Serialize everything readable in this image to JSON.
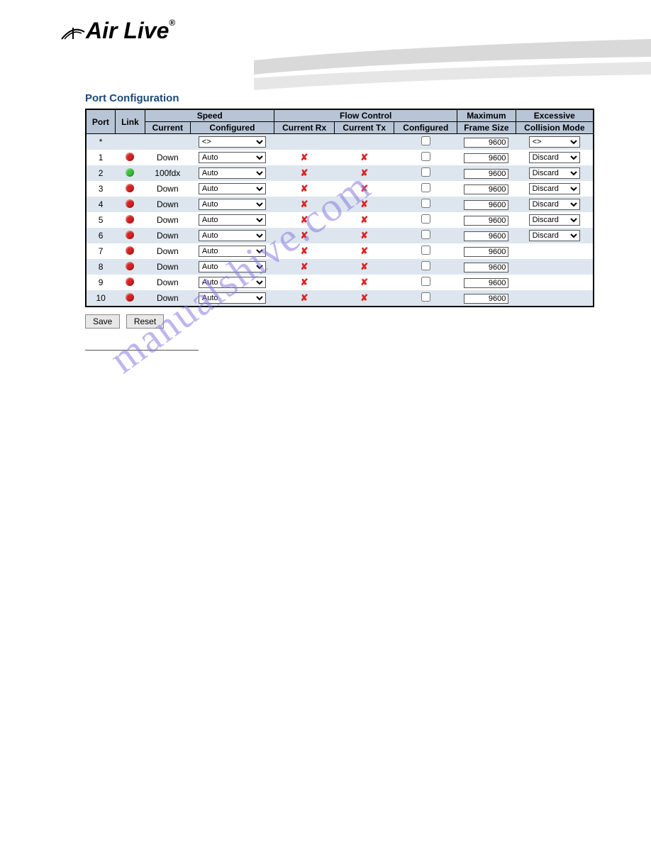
{
  "logo": {
    "text": "Air Live",
    "registered": "®"
  },
  "title": "Port Configuration",
  "headers": {
    "port": "Port",
    "link": "Link",
    "speed": "Speed",
    "speed_current": "Current",
    "speed_configured": "Configured",
    "flow": "Flow Control",
    "flow_rx": "Current Rx",
    "flow_tx": "Current Tx",
    "flow_conf": "Configured",
    "max": "Maximum",
    "max_sub": "Frame Size",
    "exc": "Excessive",
    "exc_sub": "Collision Mode"
  },
  "speed_options": [
    "<>",
    "Auto"
  ],
  "exc_options": [
    "<>",
    "Discard"
  ],
  "star_row": {
    "port": "*",
    "speed_configured": "<>",
    "max_frame": "9600",
    "exc": "<>"
  },
  "colors": {
    "led_down": "#d82020",
    "led_up": "#3ac23a",
    "header_bg": "#b8c5d6",
    "even_bg": "#dde6ee",
    "odd_bg": "#ffffff",
    "title_color": "#1a4a7a",
    "x_color": "#d22",
    "watermark_color": "#8a7ce0"
  },
  "rows": [
    {
      "port": "1",
      "link": "down",
      "current": "Down",
      "configured": "Auto",
      "rx": "x",
      "tx": "x",
      "fc": false,
      "max": "9600",
      "exc": "Discard"
    },
    {
      "port": "2",
      "link": "up",
      "current": "100fdx",
      "configured": "Auto",
      "rx": "x",
      "tx": "x",
      "fc": false,
      "max": "9600",
      "exc": "Discard"
    },
    {
      "port": "3",
      "link": "down",
      "current": "Down",
      "configured": "Auto",
      "rx": "x",
      "tx": "x",
      "fc": false,
      "max": "9600",
      "exc": "Discard"
    },
    {
      "port": "4",
      "link": "down",
      "current": "Down",
      "configured": "Auto",
      "rx": "x",
      "tx": "x",
      "fc": false,
      "max": "9600",
      "exc": "Discard"
    },
    {
      "port": "5",
      "link": "down",
      "current": "Down",
      "configured": "Auto",
      "rx": "x",
      "tx": "x",
      "fc": false,
      "max": "9600",
      "exc": "Discard"
    },
    {
      "port": "6",
      "link": "down",
      "current": "Down",
      "configured": "Auto",
      "rx": "x",
      "tx": "x",
      "fc": false,
      "max": "9600",
      "exc": "Discard"
    },
    {
      "port": "7",
      "link": "down",
      "current": "Down",
      "configured": "Auto",
      "rx": "x",
      "tx": "x",
      "fc": false,
      "max": "9600",
      "exc": null
    },
    {
      "port": "8",
      "link": "down",
      "current": "Down",
      "configured": "Auto",
      "rx": "x",
      "tx": "x",
      "fc": false,
      "max": "9600",
      "exc": null
    },
    {
      "port": "9",
      "link": "down",
      "current": "Down",
      "configured": "Auto",
      "rx": "x",
      "tx": "x",
      "fc": false,
      "max": "9600",
      "exc": null
    },
    {
      "port": "10",
      "link": "down",
      "current": "Down",
      "configured": "Auto",
      "rx": "x",
      "tx": "x",
      "fc": false,
      "max": "9600",
      "exc": null
    }
  ],
  "buttons": {
    "save": "Save",
    "reset": "Reset"
  },
  "watermark": "manualshive.com"
}
